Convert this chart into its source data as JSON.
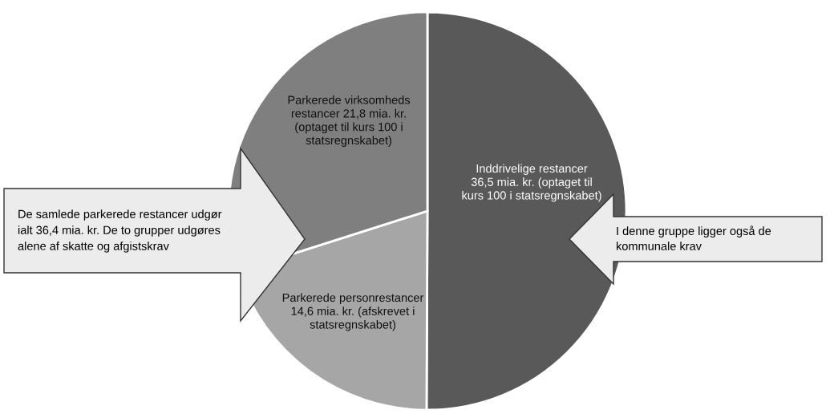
{
  "chart_data": {
    "type": "pie",
    "categories": [
      "Inddrivelige restancer\n36,5 mia. kr. (optaget til\nkurs 100 i statsregnskabet)",
      "Parkerede personrestancer\n14,6 mia. kr. (afskrevet i\nstatsregnskabet)",
      "Parkerede virksomheds\nrestancer 21,8 mia. kr.\n(optaget til kurs 100 i\nstatsregnskabet)"
    ],
    "values": [
      36.5,
      14.6,
      21.8
    ],
    "colors": [
      "#595959",
      "#a6a6a6",
      "#7f7f7f"
    ],
    "annotations": [
      "De samlede parkerede restancer udgør\nialt 36,4 mia. kr. De to grupper udgøres\nalene af skatte og afgistskrav",
      "I denne gruppe ligger også de\nkommunale krav"
    ],
    "legend": false
  }
}
